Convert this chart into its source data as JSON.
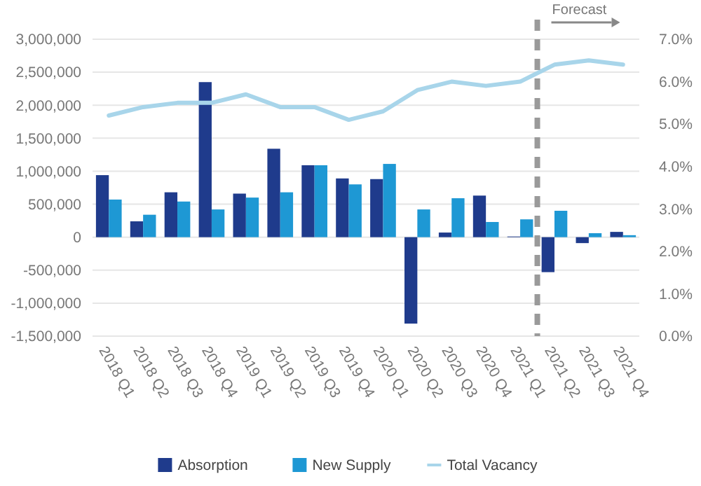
{
  "chart_data": {
    "type": "bar",
    "categories": [
      "2018 Q1",
      "2018 Q2",
      "2018 Q3",
      "2018 Q4",
      "2019 Q1",
      "2019 Q2",
      "2019 Q3",
      "2019 Q4",
      "2020 Q1",
      "2020 Q2",
      "2020 Q3",
      "2020 Q4",
      "2021 Q1",
      "2021 Q2",
      "2021 Q3",
      "2021 Q4"
    ],
    "series": [
      {
        "name": "Absorption",
        "color": "#1f3b8c",
        "values": [
          940000,
          240000,
          680000,
          2350000,
          660000,
          1340000,
          1090000,
          890000,
          880000,
          -1310000,
          70000,
          630000,
          10000,
          -530000,
          -90000,
          80000
        ]
      },
      {
        "name": "New Supply",
        "color": "#1e98d4",
        "values": [
          570000,
          340000,
          540000,
          420000,
          600000,
          680000,
          1090000,
          800000,
          1110000,
          420000,
          590000,
          230000,
          270000,
          400000,
          60000,
          30000
        ]
      },
      {
        "name": "Total Vacancy",
        "type": "line",
        "axis": "y2",
        "color": "#a8d5ea",
        "values": [
          5.2,
          5.4,
          5.5,
          5.5,
          5.7,
          5.4,
          5.4,
          5.1,
          5.3,
          5.8,
          6.0,
          5.9,
          6.0,
          6.4,
          6.5,
          6.4
        ]
      }
    ],
    "ylim": [
      -1500000,
      3000000
    ],
    "yticks": [
      {
        "value": -1500000,
        "label": "-1,500,000"
      },
      {
        "value": -1000000,
        "label": "-1,000,000"
      },
      {
        "value": -500000,
        "label": "-500,000"
      },
      {
        "value": 0,
        "label": "0"
      },
      {
        "value": 500000,
        "label": "500,000"
      },
      {
        "value": 1000000,
        "label": "1,000,000"
      },
      {
        "value": 1500000,
        "label": "1,500,000"
      },
      {
        "value": 2000000,
        "label": "2,000,000"
      },
      {
        "value": 2500000,
        "label": "2,500,000"
      },
      {
        "value": 3000000,
        "label": "3,000,000"
      }
    ],
    "y2lim": [
      0,
      7
    ],
    "y2ticks": [
      {
        "value": 0,
        "label": "0.0%"
      },
      {
        "value": 1,
        "label": "1.0%"
      },
      {
        "value": 2,
        "label": "2.0%"
      },
      {
        "value": 3,
        "label": "3.0%"
      },
      {
        "value": 4,
        "label": "4.0%"
      },
      {
        "value": 5,
        "label": "5.0%"
      },
      {
        "value": 6,
        "label": "6.0%"
      },
      {
        "value": 7,
        "label": "7.0%"
      }
    ],
    "ref_lines": [
      {
        "axis": "x",
        "value": "2021 Q1",
        "label": "Forecast",
        "color": "#9a9a9a",
        "line_style": "dashed"
      }
    ],
    "grid": "y",
    "legend": "bottom"
  }
}
